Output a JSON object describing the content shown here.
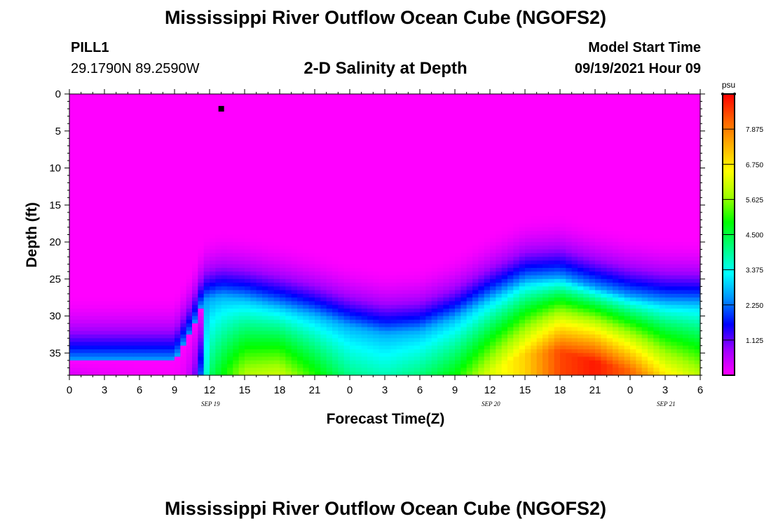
{
  "header": {
    "title": "Mississippi River Outflow Ocean Cube (NGOFS2)",
    "station_name": "PILL1",
    "station_coords": "29.1790N  89.2590W",
    "subtitle": "2-D Salinity at Depth",
    "model_start_label": "Model Start Time",
    "model_start_value": "09/19/2021 Hour 09"
  },
  "footer": {
    "title": "Mississippi River Outflow Ocean Cube (NGOFS2)"
  },
  "chart_data": {
    "type": "heatmap",
    "title": "2-D Salinity at Depth",
    "xlabel": "Forecast Time(Z)",
    "ylabel": "Depth (ft)",
    "xlim": [
      0,
      54
    ],
    "ylim": [
      0,
      38
    ],
    "y_inverted": true,
    "x_ticks": [
      0,
      3,
      6,
      9,
      12,
      15,
      18,
      21,
      24,
      27,
      30,
      33,
      36,
      39,
      42,
      45,
      48,
      51,
      54
    ],
    "x_tick_labels": [
      "0",
      "3",
      "6",
      "9",
      "12",
      "15",
      "18",
      "21",
      "0",
      "3",
      "6",
      "9",
      "12",
      "15",
      "18",
      "21",
      "0",
      "3",
      "6"
    ],
    "y_ticks": [
      0,
      5,
      10,
      15,
      20,
      25,
      30,
      35
    ],
    "y_tick_labels": [
      "0",
      "5",
      "10",
      "15",
      "20",
      "25",
      "30",
      "35"
    ],
    "date_labels": [
      {
        "x": 12,
        "label": "SEP 19"
      },
      {
        "x": 36,
        "label": "SEP 20"
      },
      {
        "x": 51,
        "label": "SEP 21"
      }
    ],
    "colorbar": {
      "unit": "psu",
      "range": [
        0,
        9
      ],
      "ticks": [
        1.125,
        2.25,
        3.375,
        4.5,
        5.625,
        6.75,
        7.875
      ],
      "tick_labels": [
        "1.125",
        "2.250",
        "3.375",
        "4.500",
        "5.625",
        "6.750",
        "7.875"
      ],
      "colors": [
        "#ff00ff",
        "#a000ff",
        "#0000ff",
        "#0090ff",
        "#00ffff",
        "#00ff80",
        "#00ff00",
        "#a0ff00",
        "#ffff00",
        "#ffb000",
        "#ff6000",
        "#ff0000"
      ]
    },
    "marker": {
      "x": 13,
      "y": 2
    },
    "profile": {
      "halocline_depth": [
        [
          0,
          36
        ],
        [
          3,
          36
        ],
        [
          6,
          36
        ],
        [
          9,
          36
        ],
        [
          10.5,
          32
        ],
        [
          11.5,
          28
        ],
        [
          13,
          27.3
        ],
        [
          15,
          27.6
        ],
        [
          18,
          28.6
        ],
        [
          21,
          29.8
        ],
        [
          24,
          31.4
        ],
        [
          27,
          32.4
        ],
        [
          30,
          32.0
        ],
        [
          33,
          30.2
        ],
        [
          36,
          27.5
        ],
        [
          39,
          25.2
        ],
        [
          42,
          24.8
        ],
        [
          45,
          26.2
        ],
        [
          48,
          27.4
        ],
        [
          51,
          28.1
        ],
        [
          54,
          28.2
        ]
      ],
      "bottom_salinity": [
        [
          0,
          1.6
        ],
        [
          3,
          0.9
        ],
        [
          6,
          0.45
        ],
        [
          9,
          0.3
        ],
        [
          10,
          0.6
        ],
        [
          11,
          1.8
        ],
        [
          12,
          4.2
        ],
        [
          15,
          5.8
        ],
        [
          18,
          6.3
        ],
        [
          21,
          5.5
        ],
        [
          24,
          4.6
        ],
        [
          27,
          4.4
        ],
        [
          30,
          4.9
        ],
        [
          33,
          5.4
        ],
        [
          36,
          6.2
        ],
        [
          39,
          7.0
        ],
        [
          42,
          8.4
        ],
        [
          45,
          8.8
        ],
        [
          48,
          8.1
        ],
        [
          51,
          6.8
        ],
        [
          54,
          6.0
        ]
      ]
    }
  }
}
